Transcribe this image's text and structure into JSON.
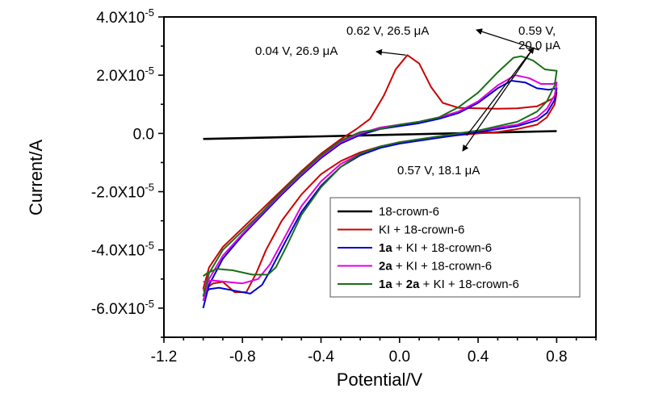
{
  "chart_data": {
    "type": "line",
    "title": "",
    "xlabel": "Potential/V",
    "ylabel": "Current/A",
    "xlim": [
      -1.2,
      1.0
    ],
    "ylim": [
      -7e-05,
      4e-05
    ],
    "x_ticks": [
      {
        "value": -1.2,
        "label": "-1.2"
      },
      {
        "value": -0.8,
        "label": "-0.8"
      },
      {
        "value": -0.4,
        "label": "-0.4"
      },
      {
        "value": 0.0,
        "label": "0.0"
      },
      {
        "value": 0.4,
        "label": "0.4"
      },
      {
        "value": 0.8,
        "label": "0.8"
      }
    ],
    "x_minor_step": 0.1,
    "y_ticks": [
      {
        "value": 4e-05,
        "mant": "4.0X10",
        "exp": "-5"
      },
      {
        "value": 2e-05,
        "mant": "2.0X10",
        "exp": "-5"
      },
      {
        "value": 0.0,
        "mant": "0.0",
        "exp": ""
      },
      {
        "value": -2e-05,
        "mant": "-2.0X10",
        "exp": "-5"
      },
      {
        "value": -4e-05,
        "mant": "-4.0X10",
        "exp": "-5"
      },
      {
        "value": -6e-05,
        "mant": "-6.0X10",
        "exp": "-5"
      }
    ],
    "y_minor_step": 1e-05,
    "grid": false,
    "legend_position": "bottom-right",
    "y_unit_scale": "microampere",
    "series": [
      {
        "name": "18-crown-6",
        "legend_parts": [
          {
            "text": "18-crown-6",
            "bold": false
          }
        ],
        "color": "#000000",
        "points": [
          [
            -1.0,
            -1.9
          ],
          [
            -0.6,
            -1.3
          ],
          [
            -0.2,
            -0.7
          ],
          [
            0.2,
            -0.1
          ],
          [
            0.6,
            0.5
          ],
          [
            0.8,
            0.8
          ]
        ]
      },
      {
        "name": "KI + 18-crown-6",
        "legend_parts": [
          {
            "text": "KI + 18-crown-6",
            "bold": false
          }
        ],
        "color": "#cc0000",
        "points": [
          [
            -1.0,
            -53.5
          ],
          [
            -0.97,
            -46.0
          ],
          [
            -0.9,
            -39.0
          ],
          [
            -0.8,
            -32.5
          ],
          [
            -0.7,
            -26.0
          ],
          [
            -0.6,
            -19.5
          ],
          [
            -0.5,
            -13.0
          ],
          [
            -0.4,
            -7.0
          ],
          [
            -0.3,
            -2.0
          ],
          [
            -0.22,
            1.5
          ],
          [
            -0.15,
            5.0
          ],
          [
            -0.08,
            13.0
          ],
          [
            -0.02,
            22.0
          ],
          [
            0.04,
            26.9
          ],
          [
            0.1,
            24.0
          ],
          [
            0.16,
            16.0
          ],
          [
            0.22,
            10.5
          ],
          [
            0.3,
            8.8
          ],
          [
            0.4,
            8.6
          ],
          [
            0.5,
            8.5
          ],
          [
            0.6,
            8.6
          ],
          [
            0.7,
            9.3
          ],
          [
            0.78,
            12.0
          ],
          [
            0.8,
            14.0
          ],
          [
            0.79,
            10.0
          ],
          [
            0.75,
            5.5
          ],
          [
            0.7,
            3.0
          ],
          [
            0.6,
            1.5
          ],
          [
            0.5,
            0.5
          ],
          [
            0.4,
            0.0
          ],
          [
            0.3,
            -0.6
          ],
          [
            0.2,
            -1.3
          ],
          [
            0.1,
            -2.2
          ],
          [
            0.0,
            -3.2
          ],
          [
            -0.1,
            -4.5
          ],
          [
            -0.2,
            -6.5
          ],
          [
            -0.3,
            -9.5
          ],
          [
            -0.4,
            -14.0
          ],
          [
            -0.5,
            -21.0
          ],
          [
            -0.6,
            -30.0
          ],
          [
            -0.68,
            -40.0
          ],
          [
            -0.73,
            -48.0
          ],
          [
            -0.78,
            -54.5
          ],
          [
            -0.84,
            -54.5
          ],
          [
            -0.9,
            -51.0
          ],
          [
            -0.95,
            -51.5
          ],
          [
            -1.0,
            -54.0
          ]
        ]
      },
      {
        "name": "1a + KI + 18-crown-6",
        "legend_parts": [
          {
            "text": "1a",
            "bold": true
          },
          {
            "text": " + KI + 18-crown-6",
            "bold": false
          }
        ],
        "color": "#0000cc",
        "points": [
          [
            -1.0,
            -60.0
          ],
          [
            -0.97,
            -52.0
          ],
          [
            -0.9,
            -43.0
          ],
          [
            -0.8,
            -35.0
          ],
          [
            -0.7,
            -28.0
          ],
          [
            -0.6,
            -21.0
          ],
          [
            -0.5,
            -14.5
          ],
          [
            -0.4,
            -8.5
          ],
          [
            -0.3,
            -3.5
          ],
          [
            -0.2,
            -0.5
          ],
          [
            -0.1,
            1.5
          ],
          [
            0.0,
            2.5
          ],
          [
            0.1,
            3.5
          ],
          [
            0.2,
            5.0
          ],
          [
            0.3,
            7.0
          ],
          [
            0.4,
            10.5
          ],
          [
            0.5,
            15.5
          ],
          [
            0.57,
            18.1
          ],
          [
            0.64,
            17.5
          ],
          [
            0.7,
            15.5
          ],
          [
            0.76,
            15.0
          ],
          [
            0.8,
            15.5
          ],
          [
            0.79,
            11.5
          ],
          [
            0.75,
            7.0
          ],
          [
            0.7,
            4.5
          ],
          [
            0.6,
            2.5
          ],
          [
            0.5,
            1.5
          ],
          [
            0.4,
            0.5
          ],
          [
            0.3,
            -0.5
          ],
          [
            0.2,
            -1.5
          ],
          [
            0.1,
            -2.5
          ],
          [
            0.0,
            -3.5
          ],
          [
            -0.1,
            -5.0
          ],
          [
            -0.2,
            -7.5
          ],
          [
            -0.3,
            -11.5
          ],
          [
            -0.4,
            -18.0
          ],
          [
            -0.5,
            -27.0
          ],
          [
            -0.58,
            -37.0
          ],
          [
            -0.65,
            -46.0
          ],
          [
            -0.7,
            -52.0
          ],
          [
            -0.76,
            -55.0
          ],
          [
            -0.84,
            -54.0
          ],
          [
            -0.92,
            -53.0
          ],
          [
            -0.97,
            -53.5
          ],
          [
            -1.0,
            -56.0
          ]
        ]
      },
      {
        "name": "2a + KI + 18-crown-6",
        "legend_parts": [
          {
            "text": "2a",
            "bold": true
          },
          {
            "text": " + KI + 18-crown-6",
            "bold": false
          }
        ],
        "color": "#e000e0",
        "points": [
          [
            -1.0,
            -57.5
          ],
          [
            -0.97,
            -50.0
          ],
          [
            -0.9,
            -42.0
          ],
          [
            -0.8,
            -34.5
          ],
          [
            -0.7,
            -27.5
          ],
          [
            -0.6,
            -20.5
          ],
          [
            -0.5,
            -14.0
          ],
          [
            -0.4,
            -8.0
          ],
          [
            -0.3,
            -3.0
          ],
          [
            -0.2,
            0.0
          ],
          [
            -0.1,
            2.0
          ],
          [
            0.0,
            3.0
          ],
          [
            0.1,
            4.0
          ],
          [
            0.2,
            5.5
          ],
          [
            0.3,
            7.5
          ],
          [
            0.4,
            11.0
          ],
          [
            0.5,
            16.5
          ],
          [
            0.59,
            20.0
          ],
          [
            0.66,
            19.0
          ],
          [
            0.72,
            17.0
          ],
          [
            0.78,
            17.0
          ],
          [
            0.8,
            17.5
          ],
          [
            0.79,
            13.0
          ],
          [
            0.75,
            8.5
          ],
          [
            0.7,
            5.5
          ],
          [
            0.6,
            3.0
          ],
          [
            0.5,
            2.0
          ],
          [
            0.4,
            1.0
          ],
          [
            0.3,
            0.0
          ],
          [
            0.2,
            -1.0
          ],
          [
            0.1,
            -2.0
          ],
          [
            0.0,
            -3.0
          ],
          [
            -0.1,
            -4.5
          ],
          [
            -0.2,
            -7.0
          ],
          [
            -0.3,
            -10.5
          ],
          [
            -0.4,
            -16.5
          ],
          [
            -0.5,
            -25.0
          ],
          [
            -0.58,
            -35.0
          ],
          [
            -0.66,
            -45.0
          ],
          [
            -0.72,
            -50.0
          ],
          [
            -0.8,
            -51.5
          ],
          [
            -0.88,
            -51.0
          ],
          [
            -0.95,
            -50.5
          ],
          [
            -1.0,
            -51.0
          ]
        ]
      },
      {
        "name": "1a + 2a + KI + 18-crown-6",
        "legend_parts": [
          {
            "text": "1a",
            "bold": true
          },
          {
            "text": " + ",
            "bold": false
          },
          {
            "text": "2a",
            "bold": true
          },
          {
            "text": " + KI + 18-crown-6",
            "bold": false
          }
        ],
        "color": "#1a6e1a",
        "points": [
          [
            -1.0,
            -56.0
          ],
          [
            -0.97,
            -48.0
          ],
          [
            -0.9,
            -40.0
          ],
          [
            -0.8,
            -33.5
          ],
          [
            -0.7,
            -27.0
          ],
          [
            -0.6,
            -20.0
          ],
          [
            -0.5,
            -13.5
          ],
          [
            -0.4,
            -7.5
          ],
          [
            -0.3,
            -2.5
          ],
          [
            -0.2,
            0.5
          ],
          [
            -0.1,
            1.5
          ],
          [
            0.0,
            3.0
          ],
          [
            0.1,
            4.0
          ],
          [
            0.2,
            5.5
          ],
          [
            0.3,
            9.0
          ],
          [
            0.4,
            14.0
          ],
          [
            0.5,
            21.0
          ],
          [
            0.58,
            26.0
          ],
          [
            0.62,
            26.5
          ],
          [
            0.68,
            25.0
          ],
          [
            0.74,
            22.0
          ],
          [
            0.8,
            21.5
          ],
          [
            0.79,
            16.5
          ],
          [
            0.75,
            11.0
          ],
          [
            0.7,
            7.5
          ],
          [
            0.6,
            4.0
          ],
          [
            0.5,
            2.5
          ],
          [
            0.4,
            1.0
          ],
          [
            0.3,
            0.0
          ],
          [
            0.2,
            -1.0
          ],
          [
            0.1,
            -2.0
          ],
          [
            0.0,
            -3.0
          ],
          [
            -0.1,
            -4.5
          ],
          [
            -0.2,
            -7.0
          ],
          [
            -0.3,
            -11.5
          ],
          [
            -0.4,
            -18.5
          ],
          [
            -0.5,
            -28.0
          ],
          [
            -0.57,
            -38.0
          ],
          [
            -0.63,
            -46.0
          ],
          [
            -0.67,
            -48.5
          ],
          [
            -0.75,
            -48.5
          ],
          [
            -0.85,
            -47.0
          ],
          [
            -0.93,
            -46.5
          ],
          [
            -0.98,
            -48.0
          ],
          [
            -1.0,
            -49.0
          ]
        ]
      }
    ],
    "annotations": [
      {
        "text": "0.04 V, 26.9 μA",
        "target": [
          0.04,
          26.9
        ],
        "series": "KI + 18-crown-6"
      },
      {
        "text": "0.62 V, 26.5 μA",
        "target": [
          0.62,
          26.5
        ],
        "series": "1a + 2a + KI + 18-crown-6"
      },
      {
        "text_lines": [
          "0.59 V,",
          "20.0 μA"
        ],
        "target": [
          0.59,
          20.0
        ],
        "series": "2a + KI + 18-crown-6"
      },
      {
        "text": "0.57 V, 18.1 μA",
        "target": [
          0.57,
          18.1
        ],
        "series": "1a + KI + 18-crown-6"
      }
    ]
  }
}
